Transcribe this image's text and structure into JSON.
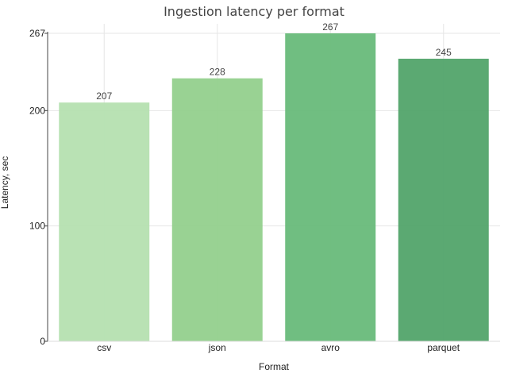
{
  "chart_data": {
    "type": "bar",
    "title": "Ingestion latency per format",
    "xlabel": "Format",
    "ylabel": "Latency, sec",
    "categories": [
      "csv",
      "json",
      "avro",
      "parquet"
    ],
    "values": [
      207,
      228,
      267,
      245
    ],
    "ylim": [
      0,
      267
    ],
    "yticks": [
      0,
      100,
      200,
      267
    ],
    "grid": true,
    "colors": [
      "#b5e0b0",
      "#93d08d",
      "#68bb7a",
      "#52a46a"
    ]
  }
}
